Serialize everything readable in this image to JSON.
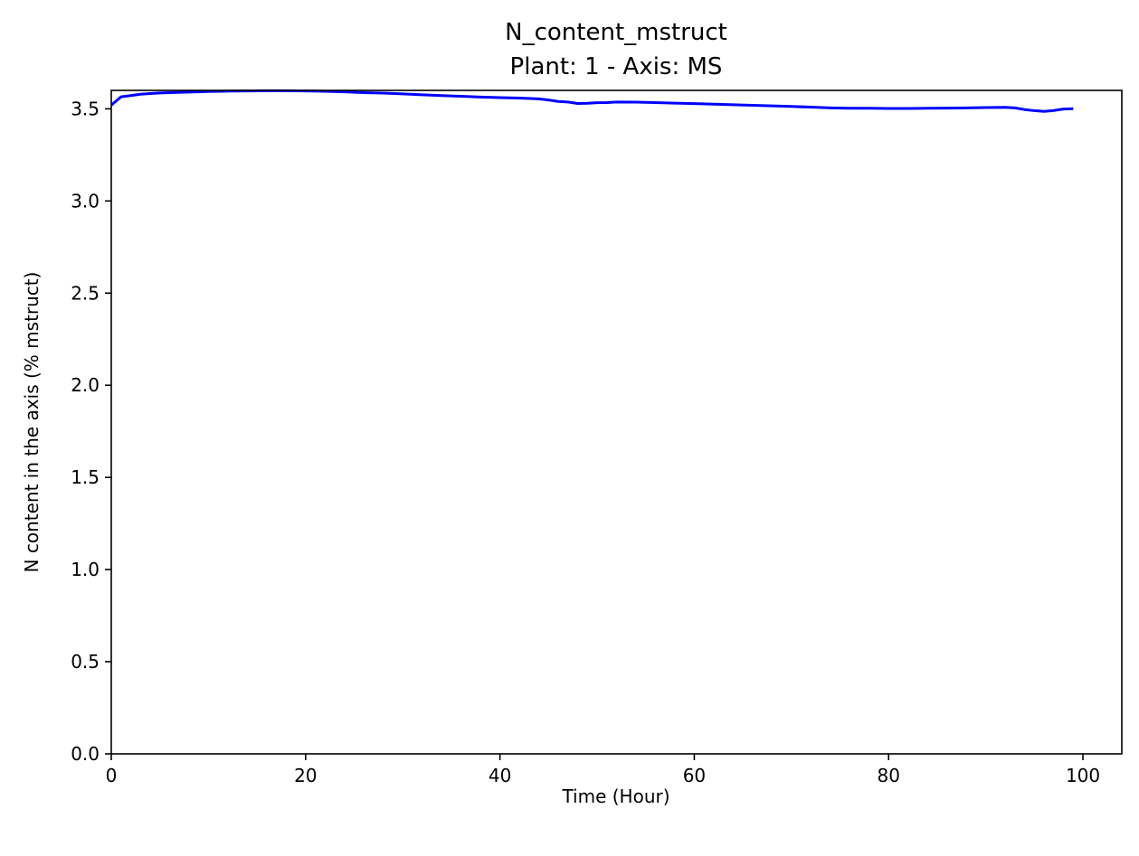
{
  "chart_data": {
    "type": "line",
    "title": "N_content_mstruct",
    "subtitle": "Plant: 1 - Axis: MS",
    "xlabel": "Time (Hour)",
    "ylabel": "N content in the axis (% mstruct)",
    "xlim": [
      0,
      104
    ],
    "ylim": [
      0,
      3.6
    ],
    "x_ticks": [
      0,
      20,
      40,
      60,
      80,
      100
    ],
    "x_tick_labels": [
      "0",
      "20",
      "40",
      "60",
      "80",
      "100"
    ],
    "y_ticks": [
      0.0,
      0.5,
      1.0,
      1.5,
      2.0,
      2.5,
      3.0,
      3.5
    ],
    "y_tick_labels": [
      "0.0",
      "0.5",
      "1.0",
      "1.5",
      "2.0",
      "2.5",
      "3.0",
      "3.5"
    ],
    "grid": false,
    "line_color": "#0000ff",
    "series": [
      {
        "x": [
          0,
          1,
          2,
          3,
          4,
          5,
          6,
          8,
          10,
          12,
          14,
          16,
          18,
          20,
          22,
          24,
          26,
          28,
          30,
          32,
          34,
          36,
          38,
          40,
          42,
          44,
          45,
          46,
          47,
          48,
          49,
          50,
          51,
          52,
          54,
          56,
          58,
          60,
          62,
          64,
          66,
          68,
          70,
          72,
          74,
          76,
          78,
          80,
          82,
          84,
          86,
          88,
          90,
          92,
          93,
          94,
          95,
          96,
          97,
          98,
          99
        ],
        "y": [
          3.52,
          3.565,
          3.572,
          3.579,
          3.583,
          3.586,
          3.588,
          3.591,
          3.594,
          3.596,
          3.597,
          3.598,
          3.598,
          3.597,
          3.595,
          3.592,
          3.588,
          3.585,
          3.581,
          3.576,
          3.572,
          3.568,
          3.564,
          3.561,
          3.558,
          3.554,
          3.548,
          3.54,
          3.537,
          3.529,
          3.53,
          3.533,
          3.534,
          3.537,
          3.536,
          3.534,
          3.531,
          3.528,
          3.525,
          3.522,
          3.519,
          3.516,
          3.513,
          3.509,
          3.505,
          3.503,
          3.503,
          3.502,
          3.502,
          3.503,
          3.504,
          3.505,
          3.507,
          3.508,
          3.505,
          3.496,
          3.49,
          3.486,
          3.491,
          3.499,
          3.501
        ]
      }
    ]
  }
}
